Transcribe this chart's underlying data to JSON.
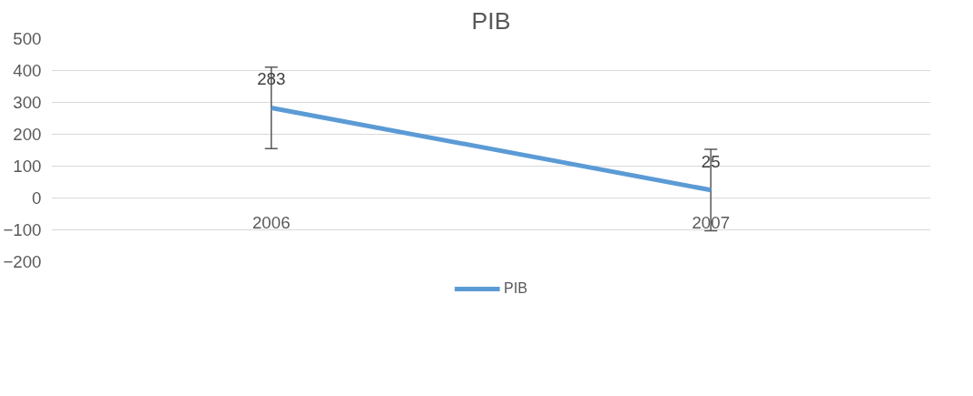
{
  "chart_data": {
    "type": "line",
    "title": "PIB",
    "categories": [
      "2006",
      "2007"
    ],
    "series": [
      {
        "name": "PIB",
        "color": "#5b9bd5",
        "values": [
          283,
          25
        ],
        "errors": [
          128,
          128
        ]
      }
    ],
    "ylim": [
      -200,
      500
    ],
    "yticks": [
      -200,
      -100,
      0,
      100,
      200,
      300,
      400,
      500
    ],
    "grid": "y",
    "legend": "bottom",
    "data_labels": true,
    "marker": "none",
    "line_style": "solid"
  }
}
